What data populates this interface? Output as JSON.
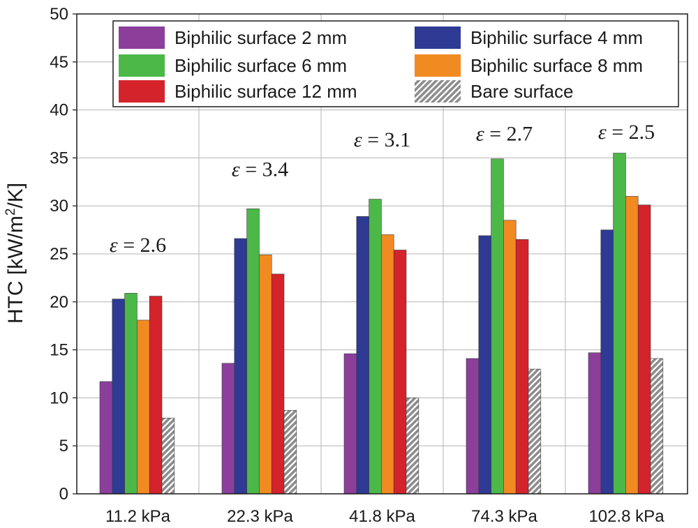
{
  "chart_data": {
    "type": "bar",
    "title": "",
    "xlabel": "",
    "ylabel": "HTC [kW/m",
    "ylabel_sup": "2",
    "ylabel_tail": "/K]",
    "ylim": [
      0,
      50
    ],
    "ytick_step": 5,
    "yticks": [
      "0",
      "5",
      "10",
      "15",
      "20",
      "25",
      "30",
      "35",
      "40",
      "45",
      "50"
    ],
    "grid": true,
    "legend_position": "top",
    "categories": [
      "11.2 kPa",
      "22.3 kPa",
      "41.8 kPa",
      "74.3 kPa",
      "102.8 kPa"
    ],
    "series": [
      {
        "name": "Biphilic surface 2 mm",
        "color": "#8b3f9b",
        "pattern": "solid",
        "values": [
          11.7,
          13.6,
          14.6,
          14.1,
          14.7
        ]
      },
      {
        "name": "Biphilic surface 4 mm",
        "color": "#2e3a93",
        "pattern": "solid",
        "values": [
          20.3,
          26.6,
          28.9,
          26.9,
          27.5
        ]
      },
      {
        "name": "Biphilic surface 6 mm",
        "color": "#4bb848",
        "pattern": "solid",
        "values": [
          20.9,
          29.7,
          30.7,
          34.9,
          35.5
        ]
      },
      {
        "name": "Biphilic surface 8 mm",
        "color": "#f28a22",
        "pattern": "solid",
        "values": [
          18.1,
          24.9,
          27.0,
          28.5,
          31.0
        ]
      },
      {
        "name": "Biphilic surface 12 mm",
        "color": "#d4232b",
        "pattern": "solid",
        "values": [
          20.6,
          22.9,
          25.4,
          26.5,
          30.1
        ]
      },
      {
        "name": "Bare surface",
        "color": "#8c8c8c",
        "pattern": "hatch",
        "values": [
          7.9,
          8.7,
          10.0,
          13.0,
          14.1
        ]
      }
    ],
    "annotations": [
      {
        "symbol": "ε",
        "text": " = 2.6",
        "category_index": 0,
        "y": 25.2
      },
      {
        "symbol": "ε",
        "text": " = 3.4",
        "category_index": 1,
        "y": 33.1
      },
      {
        "symbol": "ε",
        "text": " = 3.1",
        "category_index": 2,
        "y": 36.2
      },
      {
        "symbol": "ε",
        "text": " = 2.7",
        "category_index": 3,
        "y": 36.8
      },
      {
        "symbol": "ε",
        "text": " = 2.5",
        "category_index": 4,
        "y": 37.0
      }
    ]
  }
}
